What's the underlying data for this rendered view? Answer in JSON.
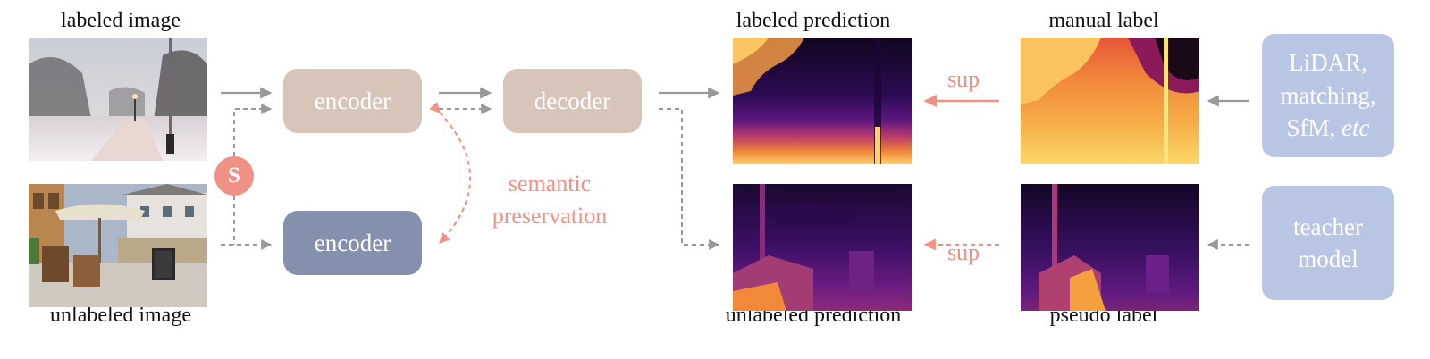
{
  "captions": {
    "labeled_image": "labeled image",
    "unlabeled_image": "unlabeled image",
    "labeled_prediction": "labeled prediction",
    "unlabeled_prediction": "unlabeled prediction",
    "manual_label": "manual label",
    "pseudo_label": "pseudo label"
  },
  "boxes": {
    "encoder_top": "encoder",
    "decoder": "decoder",
    "encoder_bottom": "encoder",
    "source_top": [
      "LiDAR,",
      "matching,",
      "SfM, "
    ],
    "source_top_etc": "etc",
    "source_bottom": [
      "teacher",
      "model"
    ]
  },
  "annotations": {
    "s": "S",
    "sup_top": "sup",
    "sup_bottom": "sup",
    "semantic": [
      "semantic",
      "preservation"
    ]
  },
  "colors": {
    "encoder_light": "#d6c5b8",
    "encoder_dark": "#8590ad",
    "source_box": "#b9c6e3",
    "accent": "#f09186",
    "arrow": "#999999"
  }
}
